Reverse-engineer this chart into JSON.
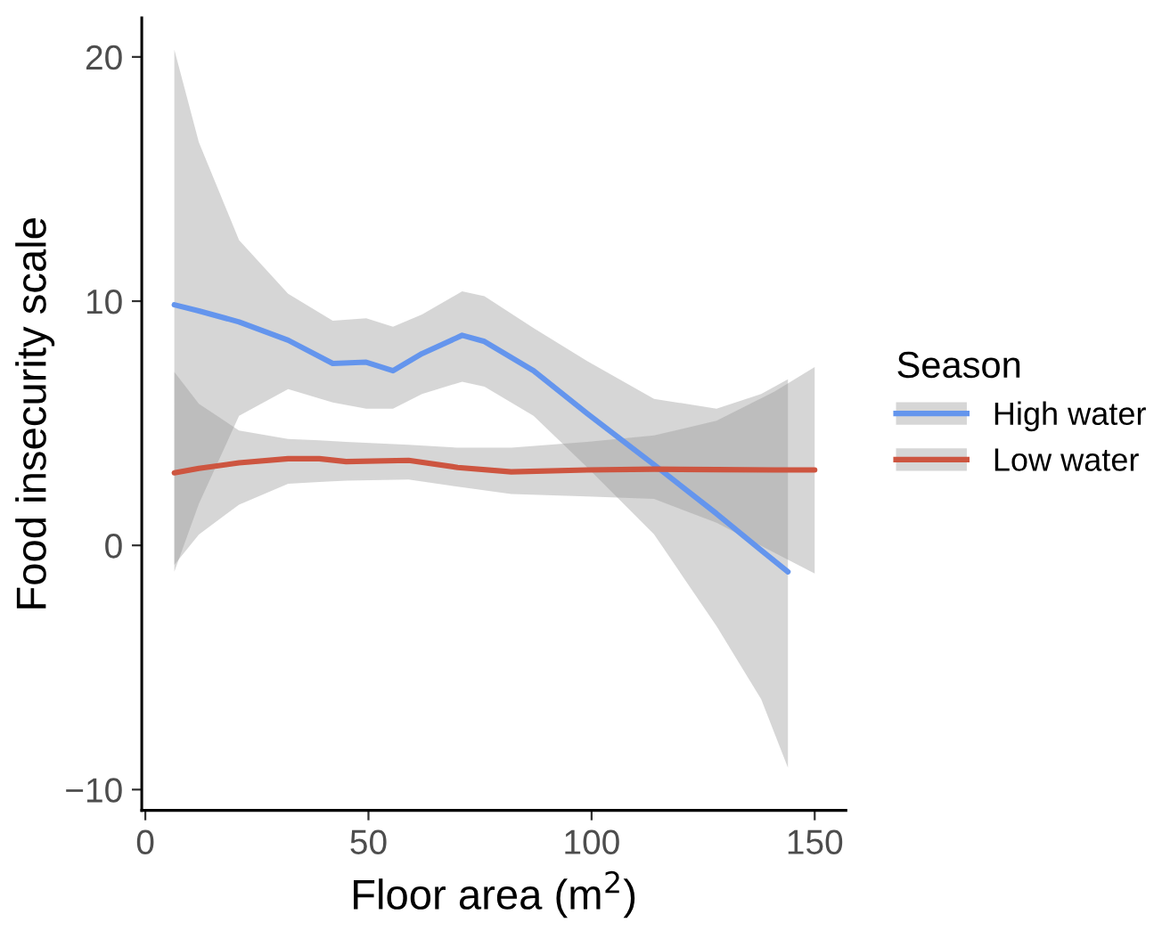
{
  "chart_data": {
    "type": "line",
    "xlabel": "Floor area (m$^{2}$)",
    "ylabel": "Food insecurity scale",
    "legend_title": "Season",
    "legend": "right",
    "grid": false,
    "marker": "none",
    "line_style": "solid",
    "xlim": [
      -0.8,
      157
    ],
    "ylim": [
      -10.85,
      21.6
    ],
    "xticks": [
      0,
      50,
      100,
      150
    ],
    "yticks": [
      {
        "value": -10,
        "label": "−10"
      },
      0,
      10,
      20
    ],
    "series": [
      {
        "name": "High water",
        "color": "#6495ed",
        "x": [
          6.5,
          12,
          21,
          32,
          42,
          49.5,
          55.5,
          62,
          71,
          76,
          87,
          99,
          114,
          128,
          138,
          144
        ],
        "values": [
          9.85,
          9.6,
          9.15,
          8.4,
          7.45,
          7.5,
          7.15,
          7.85,
          8.6,
          8.35,
          7.15,
          5.4,
          3.3,
          1.3,
          -0.2,
          -1.08
        ],
        "upper": [
          20.3,
          16.5,
          12.5,
          10.3,
          9.2,
          9.3,
          8.95,
          9.45,
          10.4,
          10.2,
          8.9,
          7.55,
          6.0,
          5.6,
          6.2,
          6.8
        ],
        "lower": [
          -1.08,
          1.7,
          5.3,
          6.4,
          5.85,
          5.6,
          5.6,
          6.2,
          6.7,
          6.5,
          5.3,
          3.2,
          0.45,
          -3.3,
          -6.3,
          -9.1
        ]
      },
      {
        "name": "Low water",
        "color": "#cd5540",
        "x": [
          6.5,
          12,
          21,
          32,
          39,
          45,
          59,
          70,
          82,
          99,
          114,
          128,
          141,
          150
        ],
        "values": [
          2.97,
          3.15,
          3.38,
          3.55,
          3.55,
          3.43,
          3.48,
          3.19,
          3.01,
          3.09,
          3.12,
          3.1,
          3.09,
          3.09
        ],
        "upper": [
          7.1,
          5.8,
          4.7,
          4.36,
          4.3,
          4.24,
          4.12,
          4.0,
          4.0,
          4.24,
          4.5,
          5.1,
          6.3,
          7.3
        ],
        "lower": [
          -0.8,
          0.44,
          1.67,
          2.52,
          2.6,
          2.65,
          2.7,
          2.4,
          2.1,
          2.0,
          1.9,
          0.93,
          -0.3,
          -1.15
        ]
      }
    ]
  }
}
